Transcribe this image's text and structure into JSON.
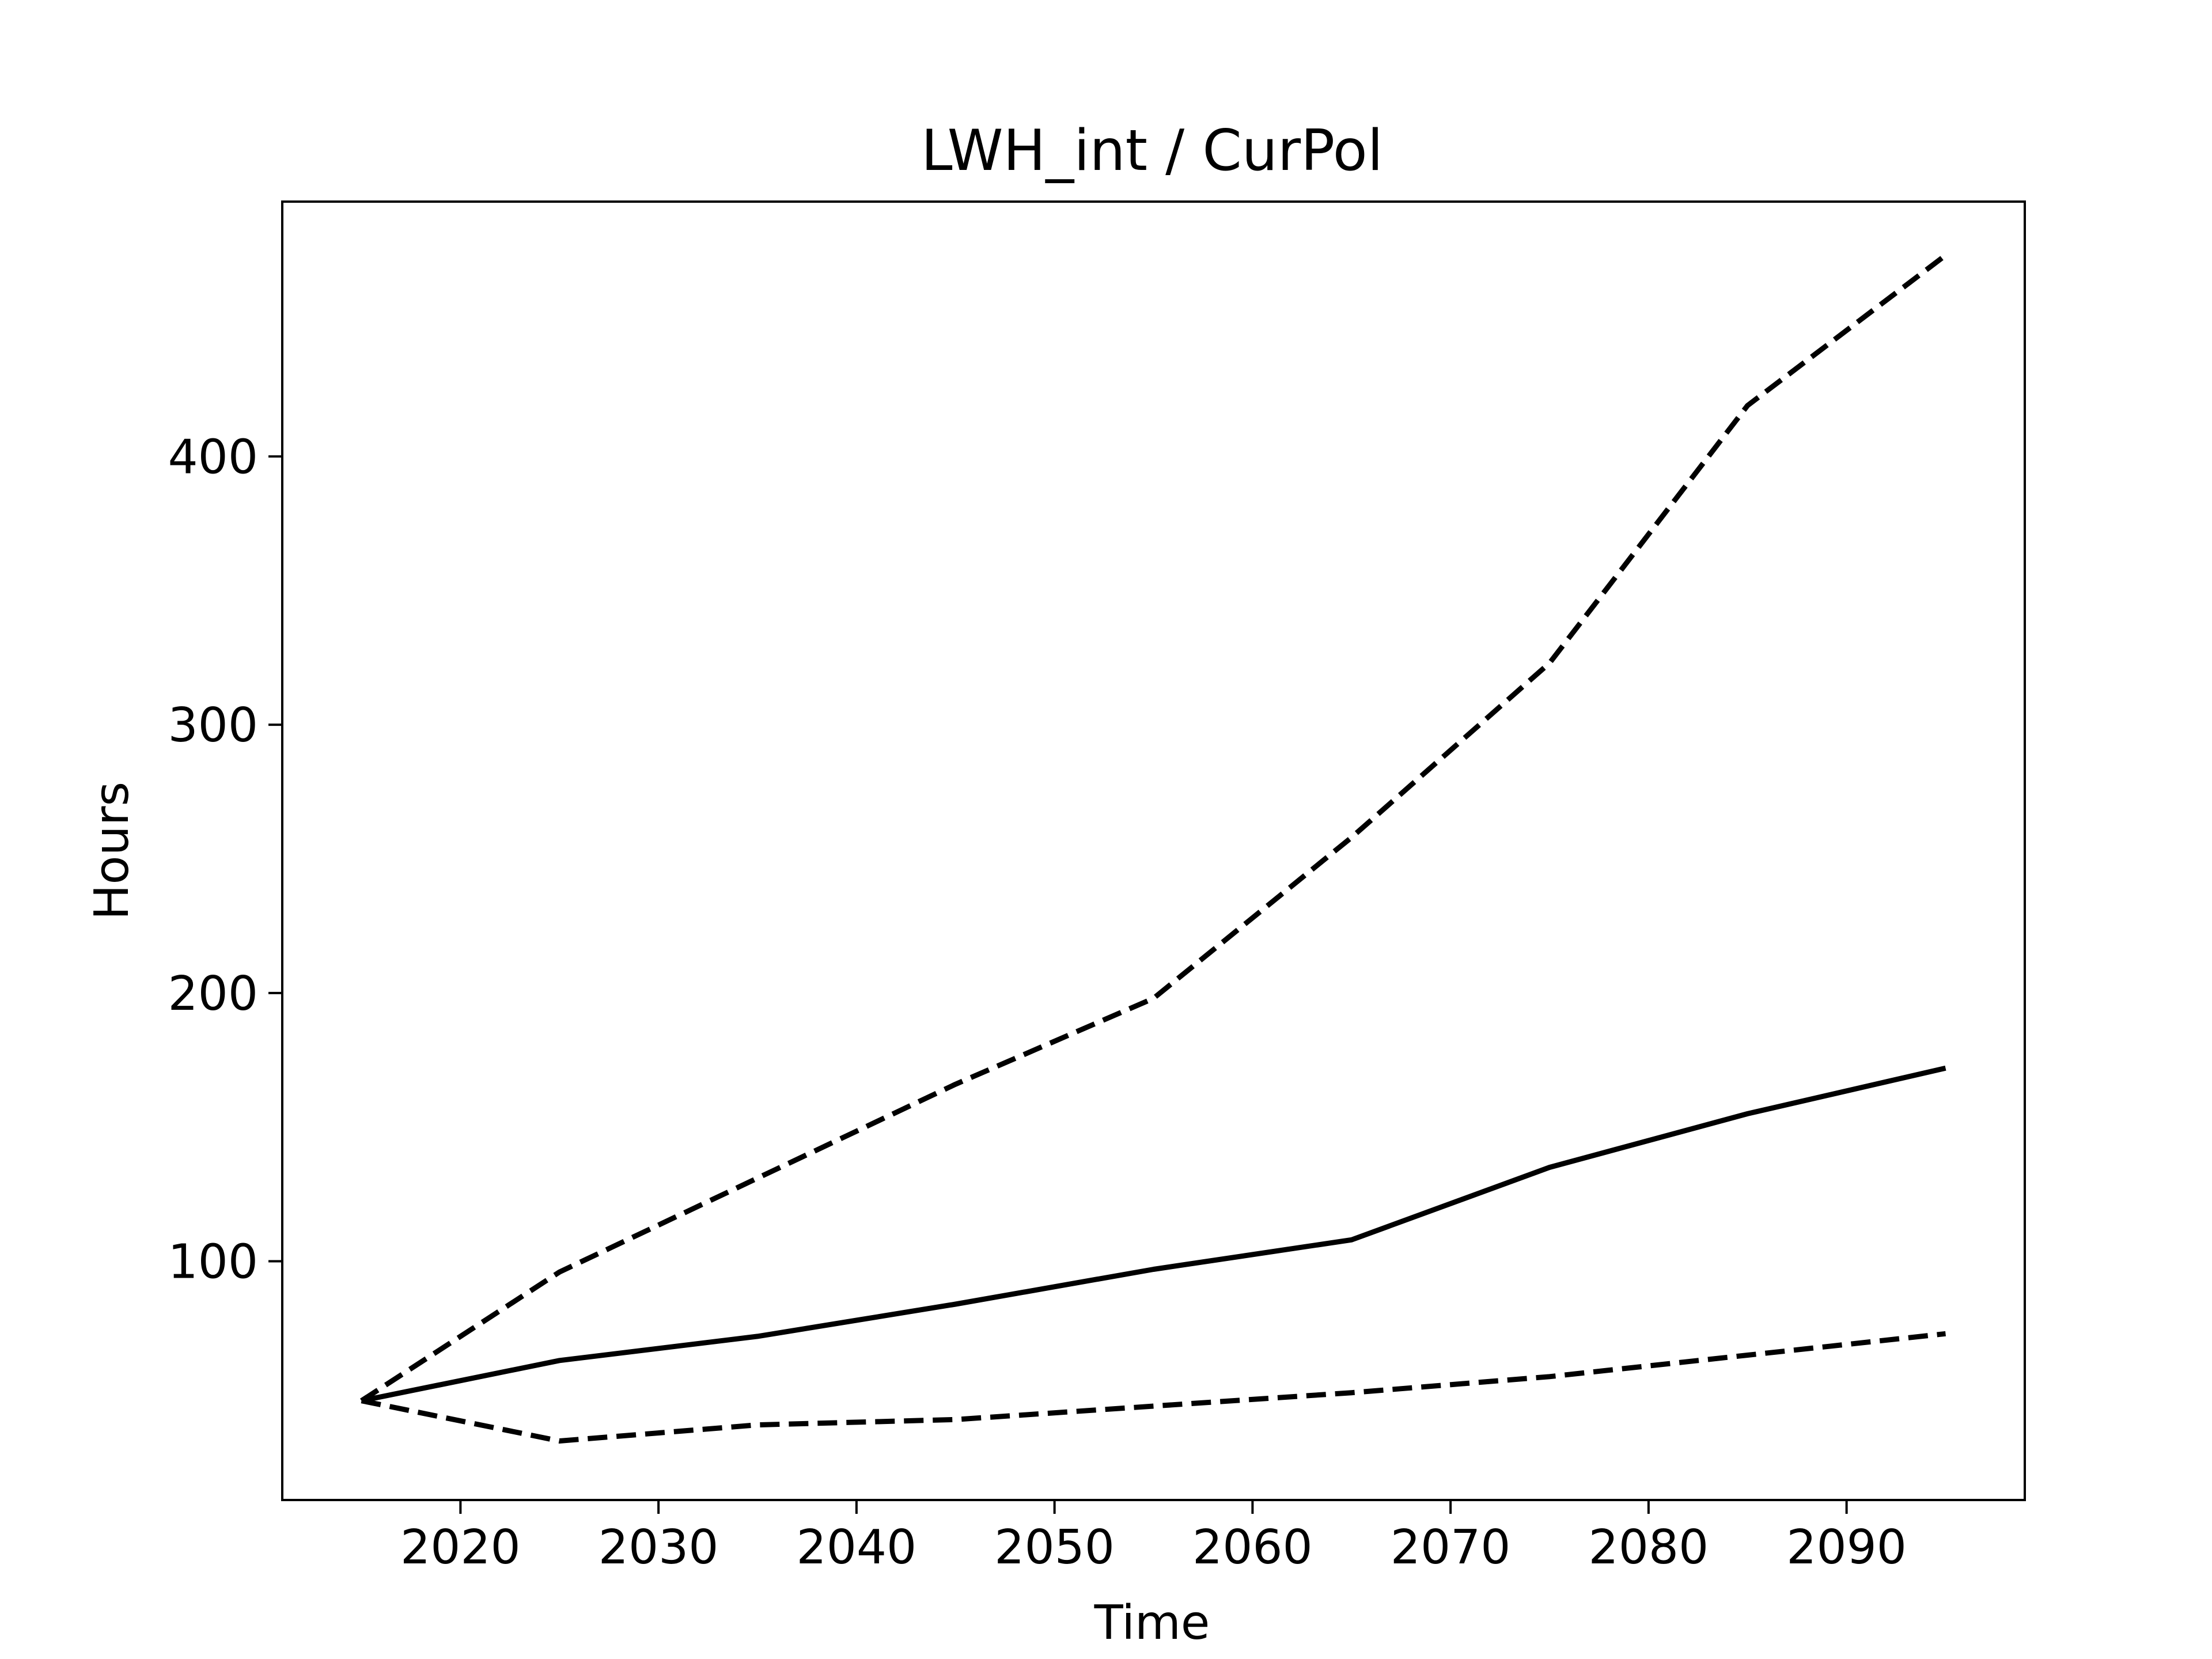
{
  "chart_data": {
    "type": "line",
    "title": "LWH_int / CurPol",
    "xlabel": "Time",
    "ylabel": "Hours",
    "xlim": [
      2011,
      2099
    ],
    "ylim": [
      11,
      495
    ],
    "x_ticks": [
      2020,
      2030,
      2040,
      2050,
      2060,
      2070,
      2080,
      2090
    ],
    "y_ticks": [
      100,
      200,
      300,
      400
    ],
    "grid": false,
    "legend": "none",
    "x": [
      2015,
      2025,
      2035,
      2045,
      2055,
      2065,
      2075,
      2085,
      2095
    ],
    "series": [
      {
        "style": "dashed",
        "color": "#000000",
        "values": [
          48,
          96,
          131,
          166,
          198,
          258,
          323,
          419,
          475
        ]
      },
      {
        "style": "solid",
        "color": "#000000",
        "values": [
          48,
          63,
          72,
          84,
          97,
          108,
          135,
          155,
          172
        ]
      },
      {
        "style": "dashed",
        "color": "#000000",
        "values": [
          48,
          33,
          39,
          41,
          46,
          51,
          57,
          65,
          73
        ]
      }
    ]
  }
}
